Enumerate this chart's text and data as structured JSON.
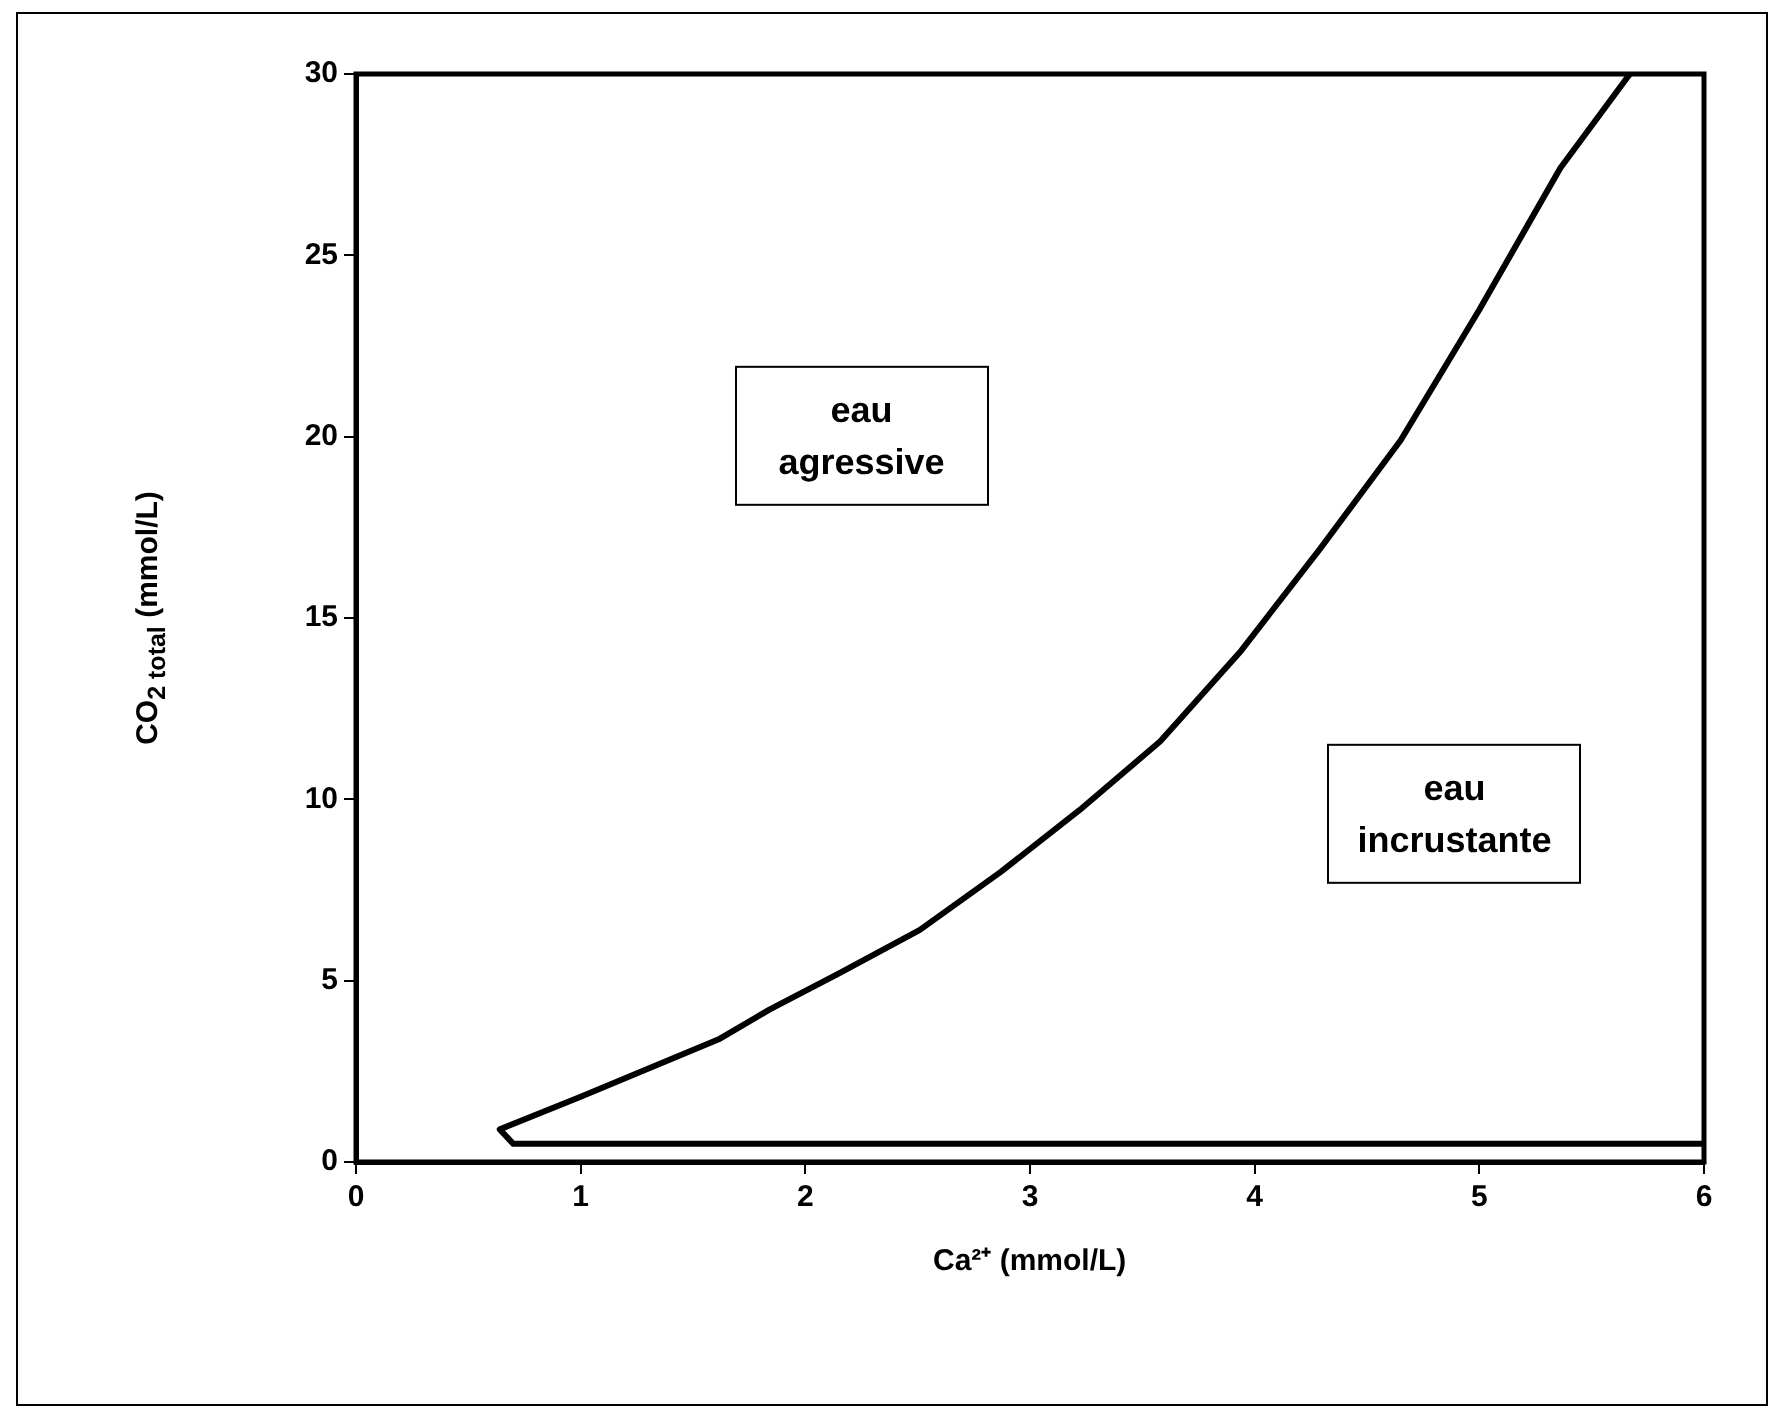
{
  "chart_data": {
    "type": "line",
    "xlabel": "Ca²⁺ (mmol/L)",
    "ylabel": "CO$_{2 total}$ (mmol/L)",
    "xlim": [
      0,
      6
    ],
    "xticks": [
      0,
      1,
      2,
      3,
      4,
      5,
      6
    ],
    "ylim": [
      0,
      30
    ],
    "yticks": [
      0,
      5,
      10,
      15,
      20,
      25,
      30
    ],
    "series": [
      {
        "color": "#000000",
        "x": [
          6,
          0.7,
          0.64,
          1.0,
          1.35,
          1.62,
          1.84,
          2.15,
          2.51,
          2.87,
          3.22,
          3.58,
          3.94,
          4.29,
          4.65,
          5.0,
          5.36,
          5.67
        ],
        "values": [
          0.5,
          0.5,
          0.9,
          1.8,
          2.7,
          3.4,
          4.2,
          5.2,
          6.4,
          8.0,
          9.7,
          11.6,
          14.1,
          16.9,
          19.9,
          23.5,
          27.4,
          30
        ]
      }
    ],
    "annotations": [
      "eau agressive",
      "eau incrustante"
    ],
    "grid": false,
    "legend": false,
    "marker": "none",
    "line_style": "solid"
  }
}
